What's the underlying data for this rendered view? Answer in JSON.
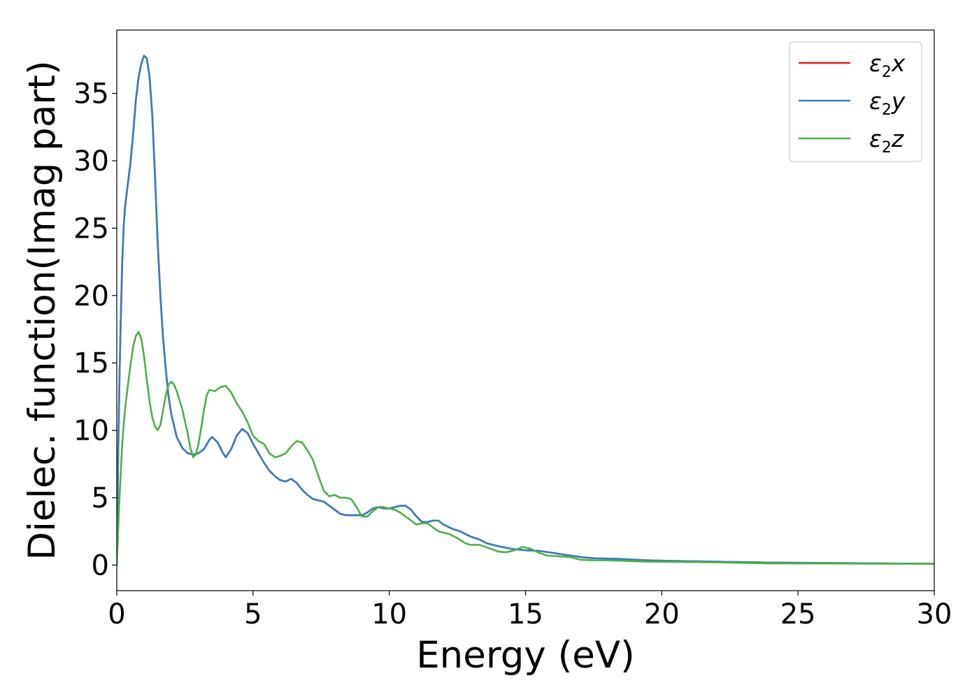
{
  "chart_data": {
    "type": "line",
    "title": "",
    "xlabel": "Energy (eV)",
    "ylabel": "Dielec. function(Imag part)",
    "xlim": [
      0,
      30
    ],
    "ylim": [
      -1.9,
      39.7
    ],
    "xticks": [
      0,
      5,
      10,
      15,
      20,
      25,
      30
    ],
    "yticks": [
      0,
      5,
      10,
      15,
      20,
      25,
      30,
      35
    ],
    "grid": false,
    "legend": {
      "location": "top-right",
      "entries": [
        {
          "base": "ε",
          "sub": "2",
          "tail": "x",
          "color": "#e41a1c"
        },
        {
          "base": "ε",
          "sub": "2",
          "tail": "y",
          "color": "#377eb8"
        },
        {
          "base": "ε",
          "sub": "2",
          "tail": "z",
          "color": "#4daf4a"
        }
      ]
    },
    "series": [
      {
        "id": "e2x",
        "color": "#e41a1c",
        "points": [
          [
            0,
            0
          ],
          [
            0.05,
            8
          ],
          [
            0.1,
            14
          ],
          [
            0.15,
            18.5
          ],
          [
            0.2,
            22.5
          ],
          [
            0.25,
            25
          ],
          [
            0.3,
            26.5
          ],
          [
            0.4,
            28.2
          ],
          [
            0.5,
            29.8
          ],
          [
            0.6,
            32
          ],
          [
            0.7,
            34.5
          ],
          [
            0.8,
            36.2
          ],
          [
            0.9,
            37.2
          ],
          [
            1.0,
            37.8
          ],
          [
            1.1,
            37.6
          ],
          [
            1.2,
            36.3
          ],
          [
            1.3,
            33.5
          ],
          [
            1.4,
            29
          ],
          [
            1.5,
            24
          ],
          [
            1.6,
            20
          ],
          [
            1.7,
            16.8
          ],
          [
            1.8,
            14.5
          ],
          [
            1.9,
            12.5
          ],
          [
            2.0,
            11.2
          ],
          [
            2.2,
            9.5
          ],
          [
            2.4,
            8.7
          ],
          [
            2.6,
            8.3
          ],
          [
            2.8,
            8.2
          ],
          [
            3.0,
            8.3
          ],
          [
            3.2,
            8.6
          ],
          [
            3.4,
            9.3
          ],
          [
            3.5,
            9.5
          ],
          [
            3.7,
            9.1
          ],
          [
            3.9,
            8.3
          ],
          [
            4.0,
            8.0
          ],
          [
            4.2,
            8.6
          ],
          [
            4.4,
            9.6
          ],
          [
            4.6,
            10.1
          ],
          [
            4.8,
            9.8
          ],
          [
            5.0,
            9.0
          ],
          [
            5.2,
            8.3
          ],
          [
            5.4,
            7.6
          ],
          [
            5.6,
            7.0
          ],
          [
            5.8,
            6.6
          ],
          [
            6.0,
            6.3
          ],
          [
            6.2,
            6.2
          ],
          [
            6.4,
            6.4
          ],
          [
            6.6,
            6.1
          ],
          [
            6.8,
            5.6
          ],
          [
            7.0,
            5.2
          ],
          [
            7.2,
            4.9
          ],
          [
            7.4,
            4.8
          ],
          [
            7.6,
            4.7
          ],
          [
            7.8,
            4.4
          ],
          [
            8.0,
            4.1
          ],
          [
            8.2,
            3.8
          ],
          [
            8.4,
            3.7
          ],
          [
            8.6,
            3.7
          ],
          [
            8.8,
            3.7
          ],
          [
            9.0,
            3.7
          ],
          [
            9.2,
            3.9
          ],
          [
            9.4,
            4.2
          ],
          [
            9.6,
            4.3
          ],
          [
            9.8,
            4.2
          ],
          [
            10.0,
            4.2
          ],
          [
            10.2,
            4.3
          ],
          [
            10.4,
            4.4
          ],
          [
            10.6,
            4.4
          ],
          [
            10.8,
            4.1
          ],
          [
            11.0,
            3.6
          ],
          [
            11.2,
            3.2
          ],
          [
            11.4,
            3.2
          ],
          [
            11.6,
            3.3
          ],
          [
            11.8,
            3.3
          ],
          [
            12.0,
            3.0
          ],
          [
            12.3,
            2.7
          ],
          [
            12.6,
            2.5
          ],
          [
            12.8,
            2.3
          ],
          [
            13.0,
            2.1
          ],
          [
            13.3,
            1.9
          ],
          [
            13.6,
            1.6
          ],
          [
            14.0,
            1.4
          ],
          [
            14.5,
            1.2
          ],
          [
            15.0,
            1.1
          ],
          [
            15.5,
            1.05
          ],
          [
            16.0,
            0.9
          ],
          [
            16.5,
            0.75
          ],
          [
            17.0,
            0.6
          ],
          [
            17.5,
            0.5
          ],
          [
            18.0,
            0.48
          ],
          [
            18.5,
            0.45
          ],
          [
            19.0,
            0.4
          ],
          [
            19.5,
            0.35
          ],
          [
            20.0,
            0.32
          ],
          [
            22.0,
            0.25
          ],
          [
            24.0,
            0.18
          ],
          [
            26.0,
            0.15
          ],
          [
            28.0,
            0.12
          ],
          [
            30.0,
            0.1
          ]
        ]
      },
      {
        "id": "e2y",
        "color": "#377eb8",
        "points": [
          [
            0,
            0
          ],
          [
            0.05,
            8
          ],
          [
            0.1,
            14
          ],
          [
            0.15,
            18.5
          ],
          [
            0.2,
            22.5
          ],
          [
            0.25,
            25
          ],
          [
            0.3,
            26.5
          ],
          [
            0.4,
            28.2
          ],
          [
            0.5,
            29.8
          ],
          [
            0.6,
            32
          ],
          [
            0.7,
            34.5
          ],
          [
            0.8,
            36.2
          ],
          [
            0.9,
            37.2
          ],
          [
            1.0,
            37.8
          ],
          [
            1.1,
            37.6
          ],
          [
            1.2,
            36.3
          ],
          [
            1.3,
            33.5
          ],
          [
            1.4,
            29
          ],
          [
            1.5,
            24
          ],
          [
            1.6,
            20
          ],
          [
            1.7,
            16.8
          ],
          [
            1.8,
            14.5
          ],
          [
            1.9,
            12.5
          ],
          [
            2.0,
            11.2
          ],
          [
            2.2,
            9.5
          ],
          [
            2.4,
            8.7
          ],
          [
            2.6,
            8.3
          ],
          [
            2.8,
            8.2
          ],
          [
            3.0,
            8.3
          ],
          [
            3.2,
            8.6
          ],
          [
            3.4,
            9.3
          ],
          [
            3.5,
            9.5
          ],
          [
            3.7,
            9.1
          ],
          [
            3.9,
            8.3
          ],
          [
            4.0,
            8.0
          ],
          [
            4.2,
            8.6
          ],
          [
            4.4,
            9.6
          ],
          [
            4.6,
            10.1
          ],
          [
            4.8,
            9.8
          ],
          [
            5.0,
            9.0
          ],
          [
            5.2,
            8.3
          ],
          [
            5.4,
            7.6
          ],
          [
            5.6,
            7.0
          ],
          [
            5.8,
            6.6
          ],
          [
            6.0,
            6.3
          ],
          [
            6.2,
            6.2
          ],
          [
            6.4,
            6.4
          ],
          [
            6.6,
            6.1
          ],
          [
            6.8,
            5.6
          ],
          [
            7.0,
            5.2
          ],
          [
            7.2,
            4.9
          ],
          [
            7.4,
            4.8
          ],
          [
            7.6,
            4.7
          ],
          [
            7.8,
            4.4
          ],
          [
            8.0,
            4.1
          ],
          [
            8.2,
            3.8
          ],
          [
            8.4,
            3.7
          ],
          [
            8.6,
            3.7
          ],
          [
            8.8,
            3.7
          ],
          [
            9.0,
            3.7
          ],
          [
            9.2,
            3.9
          ],
          [
            9.4,
            4.2
          ],
          [
            9.6,
            4.3
          ],
          [
            9.8,
            4.2
          ],
          [
            10.0,
            4.2
          ],
          [
            10.2,
            4.3
          ],
          [
            10.4,
            4.4
          ],
          [
            10.6,
            4.4
          ],
          [
            10.8,
            4.1
          ],
          [
            11.0,
            3.6
          ],
          [
            11.2,
            3.2
          ],
          [
            11.4,
            3.2
          ],
          [
            11.6,
            3.3
          ],
          [
            11.8,
            3.3
          ],
          [
            12.0,
            3.0
          ],
          [
            12.3,
            2.7
          ],
          [
            12.6,
            2.5
          ],
          [
            12.8,
            2.3
          ],
          [
            13.0,
            2.1
          ],
          [
            13.3,
            1.9
          ],
          [
            13.6,
            1.6
          ],
          [
            14.0,
            1.4
          ],
          [
            14.5,
            1.2
          ],
          [
            15.0,
            1.1
          ],
          [
            15.5,
            1.05
          ],
          [
            16.0,
            0.9
          ],
          [
            16.5,
            0.75
          ],
          [
            17.0,
            0.6
          ],
          [
            17.5,
            0.5
          ],
          [
            18.0,
            0.48
          ],
          [
            18.5,
            0.45
          ],
          [
            19.0,
            0.4
          ],
          [
            19.5,
            0.35
          ],
          [
            20.0,
            0.32
          ],
          [
            22.0,
            0.25
          ],
          [
            24.0,
            0.18
          ],
          [
            26.0,
            0.15
          ],
          [
            28.0,
            0.12
          ],
          [
            30.0,
            0.1
          ]
        ]
      },
      {
        "id": "e2z",
        "color": "#4daf4a",
        "points": [
          [
            0,
            0
          ],
          [
            0.1,
            5
          ],
          [
            0.2,
            9
          ],
          [
            0.3,
            11.5
          ],
          [
            0.4,
            13.2
          ],
          [
            0.5,
            14.8
          ],
          [
            0.6,
            16.2
          ],
          [
            0.7,
            17.0
          ],
          [
            0.8,
            17.3
          ],
          [
            0.9,
            16.8
          ],
          [
            1.0,
            15.5
          ],
          [
            1.1,
            13.8
          ],
          [
            1.2,
            12.2
          ],
          [
            1.3,
            11.0
          ],
          [
            1.4,
            10.3
          ],
          [
            1.5,
            10.0
          ],
          [
            1.6,
            10.4
          ],
          [
            1.7,
            11.5
          ],
          [
            1.8,
            12.6
          ],
          [
            1.9,
            13.4
          ],
          [
            2.0,
            13.6
          ],
          [
            2.1,
            13.4
          ],
          [
            2.2,
            12.9
          ],
          [
            2.4,
            11.6
          ],
          [
            2.6,
            9.8
          ],
          [
            2.7,
            8.7
          ],
          [
            2.8,
            8.0
          ],
          [
            2.9,
            8.2
          ],
          [
            3.0,
            9.0
          ],
          [
            3.1,
            10.2
          ],
          [
            3.2,
            11.5
          ],
          [
            3.3,
            12.6
          ],
          [
            3.4,
            13.0
          ],
          [
            3.6,
            12.9
          ],
          [
            3.8,
            13.2
          ],
          [
            4.0,
            13.3
          ],
          [
            4.2,
            12.8
          ],
          [
            4.4,
            12.0
          ],
          [
            4.6,
            11.4
          ],
          [
            4.8,
            10.6
          ],
          [
            5.0,
            9.6
          ],
          [
            5.2,
            9.2
          ],
          [
            5.4,
            9.0
          ],
          [
            5.6,
            8.3
          ],
          [
            5.8,
            8.0
          ],
          [
            6.0,
            8.1
          ],
          [
            6.2,
            8.3
          ],
          [
            6.4,
            8.8
          ],
          [
            6.6,
            9.2
          ],
          [
            6.8,
            9.1
          ],
          [
            7.0,
            8.5
          ],
          [
            7.2,
            7.8
          ],
          [
            7.4,
            6.6
          ],
          [
            7.6,
            5.5
          ],
          [
            7.8,
            5.1
          ],
          [
            8.0,
            5.2
          ],
          [
            8.2,
            5.0
          ],
          [
            8.4,
            5.0
          ],
          [
            8.6,
            4.9
          ],
          [
            8.8,
            4.3
          ],
          [
            9.0,
            3.6
          ],
          [
            9.2,
            3.6
          ],
          [
            9.4,
            4.0
          ],
          [
            9.6,
            4.3
          ],
          [
            9.8,
            4.3
          ],
          [
            10.0,
            4.2
          ],
          [
            10.2,
            4.1
          ],
          [
            10.4,
            3.9
          ],
          [
            10.6,
            3.6
          ],
          [
            10.8,
            3.3
          ],
          [
            11.0,
            3.0
          ],
          [
            11.2,
            3.1
          ],
          [
            11.4,
            3.1
          ],
          [
            11.6,
            2.8
          ],
          [
            11.8,
            2.5
          ],
          [
            12.0,
            2.4
          ],
          [
            12.2,
            2.3
          ],
          [
            12.5,
            2.0
          ],
          [
            12.8,
            1.6
          ],
          [
            13.0,
            1.5
          ],
          [
            13.3,
            1.5
          ],
          [
            13.6,
            1.3
          ],
          [
            14.0,
            1.0
          ],
          [
            14.3,
            0.95
          ],
          [
            14.6,
            1.1
          ],
          [
            14.9,
            1.35
          ],
          [
            15.2,
            1.2
          ],
          [
            15.5,
            0.9
          ],
          [
            15.8,
            0.7
          ],
          [
            16.2,
            0.65
          ],
          [
            16.6,
            0.6
          ],
          [
            17.0,
            0.4
          ],
          [
            17.5,
            0.35
          ],
          [
            18.0,
            0.35
          ],
          [
            18.5,
            0.32
          ],
          [
            19.0,
            0.28
          ],
          [
            19.5,
            0.25
          ],
          [
            20.0,
            0.25
          ],
          [
            22.0,
            0.2
          ],
          [
            24.0,
            0.12
          ],
          [
            26.0,
            0.12
          ],
          [
            28.0,
            0.1
          ],
          [
            30.0,
            0.1
          ]
        ]
      }
    ]
  }
}
